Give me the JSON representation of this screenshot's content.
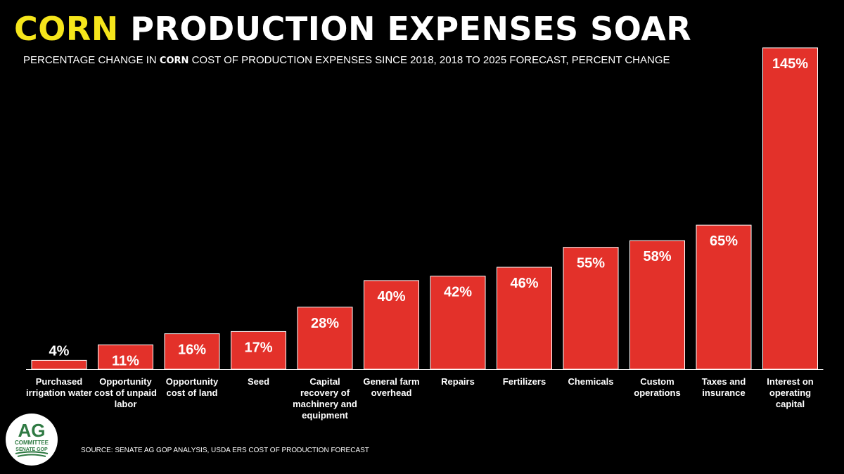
{
  "title": {
    "highlight": "CORN",
    "rest": " PRODUCTION EXPENSES SOAR"
  },
  "subtitle": {
    "before": "PERCENTAGE CHANGE IN ",
    "highlight": "CORN",
    "after": " COST OF PRODUCTION EXPENSES SINCE 2018, 2018 TO 2025 FORECAST, PERCENT CHANGE"
  },
  "chart_data": {
    "type": "bar",
    "categories": [
      "Purchased irrigation water",
      "Opportunity cost of unpaid labor",
      "Opportunity cost of land",
      "Seed",
      "Capital recovery of machinery and equipment",
      "General farm overhead",
      "Repairs",
      "Fertilizers",
      "Chemicals",
      "Custom operations",
      "Taxes and insurance",
      "Interest on operating capital"
    ],
    "values": [
      4,
      11,
      16,
      17,
      28,
      40,
      42,
      46,
      55,
      58,
      65,
      145
    ],
    "data_labels": [
      "4%",
      "11%",
      "16%",
      "17%",
      "28%",
      "40%",
      "42%",
      "46%",
      "55%",
      "58%",
      "65%",
      "145%"
    ],
    "ylim": [
      0,
      145
    ],
    "grid": false,
    "legend": "none",
    "bar_color": "#e3312a"
  },
  "logo": {
    "line1": "AG",
    "line2": "COMMITTEE",
    "line3": "SENATE GOP"
  },
  "source": "SOURCE: SENATE AG GOP ANALYSIS, USDA ERS COST OF PRODUCTION FORECAST"
}
